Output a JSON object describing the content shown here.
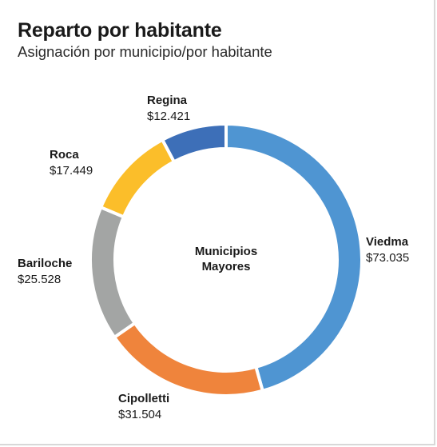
{
  "chart_data": {
    "type": "pie",
    "title": "Reparto por habitante",
    "subtitle": "Asignación por municipio/por habitante",
    "center_label": [
      "Municipios",
      "Mayores"
    ],
    "slices": [
      {
        "name": "Viedma",
        "value": 73035,
        "label": "$73.035",
        "color": "#4f95d2"
      },
      {
        "name": "Cipolletti",
        "value": 31504,
        "label": "$31.504",
        "color": "#ef843c"
      },
      {
        "name": "Bariloche",
        "value": 25528,
        "label": "$25.528",
        "color": "#a3a5a4"
      },
      {
        "name": "Roca",
        "value": 17449,
        "label": "$17.449",
        "color": "#fbbe2a"
      },
      {
        "name": "Regina",
        "value": 12421,
        "label": "$12.421",
        "color": "#3d6fb8"
      }
    ],
    "legend": "none"
  }
}
